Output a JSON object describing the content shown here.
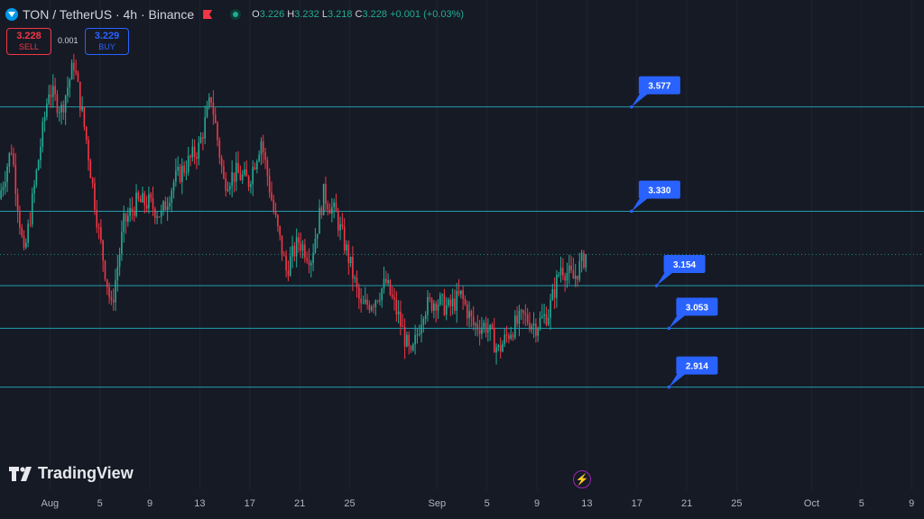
{
  "header": {
    "symbol": "TON / TetherUS · 4h · Binance",
    "ohlc": {
      "o": "3.226",
      "h": "3.232",
      "l": "3.218",
      "c": "3.228",
      "chg": "+0.001 (+0.03%)"
    },
    "labels": {
      "o": "O",
      "h": "H",
      "l": "L",
      "c": "C"
    }
  },
  "trade": {
    "sell_price": "3.228",
    "sell_label": "SELL",
    "buy_price": "3.229",
    "buy_label": "BUY",
    "spread": "0.001"
  },
  "brand": "TradingView",
  "icons": [
    "ton-coin-icon",
    "flag-icon",
    "market-status-icon",
    "tradingview-logo-icon",
    "lightning-icon"
  ],
  "colors": {
    "background": "#161a25",
    "up": "#22ab94",
    "down": "#f23645",
    "level_line": "#26c6da",
    "label_bg": "#2962ff"
  },
  "chart_data": {
    "type": "candlestick",
    "title": "TON / TetherUS · 4h · Binance",
    "x_tick_labels": [
      "Aug",
      "5",
      "9",
      "13",
      "17",
      "21",
      "25",
      "Sep",
      "5",
      "9",
      "13",
      "17",
      "21",
      "25",
      "Oct",
      "5",
      "9"
    ],
    "x_range": [
      "2024-07-28",
      "2024-10-10"
    ],
    "y_range": [
      2.67,
      3.83
    ],
    "last_price": 3.228,
    "levels": [
      {
        "label": "3.577",
        "value": 3.577
      },
      {
        "label": "3.330",
        "value": 3.33
      },
      {
        "label": "3.154",
        "value": 3.154
      },
      {
        "label": "3.053",
        "value": 3.053
      },
      {
        "label": "2.914",
        "value": 2.914
      }
    ],
    "path_anchors": [
      [
        "2024-07-28",
        3.36
      ],
      [
        "2024-07-29",
        3.48
      ],
      [
        "2024-07-30",
        3.22
      ],
      [
        "2024-07-31",
        3.42
      ],
      [
        "2024-08-01",
        3.62
      ],
      [
        "2024-08-02",
        3.57
      ],
      [
        "2024-08-03",
        3.68
      ],
      [
        "2024-08-04",
        3.5
      ],
      [
        "2024-08-05",
        3.28
      ],
      [
        "2024-08-06",
        3.1
      ],
      [
        "2024-08-07",
        3.3
      ],
      [
        "2024-08-08",
        3.35
      ],
      [
        "2024-08-09",
        3.35
      ],
      [
        "2024-08-10",
        3.32
      ],
      [
        "2024-08-11",
        3.4
      ],
      [
        "2024-08-12",
        3.44
      ],
      [
        "2024-08-13",
        3.48
      ],
      [
        "2024-08-14",
        3.6
      ],
      [
        "2024-08-15",
        3.4
      ],
      [
        "2024-08-16",
        3.42
      ],
      [
        "2024-08-17",
        3.4
      ],
      [
        "2024-08-18",
        3.5
      ],
      [
        "2024-08-19",
        3.33
      ],
      [
        "2024-08-20",
        3.19
      ],
      [
        "2024-08-21",
        3.26
      ],
      [
        "2024-08-22",
        3.22
      ],
      [
        "2024-08-23",
        3.37
      ],
      [
        "2024-08-24",
        3.32
      ],
      [
        "2024-08-25",
        3.22
      ],
      [
        "2024-08-26",
        3.1
      ],
      [
        "2024-08-27",
        3.12
      ],
      [
        "2024-08-28",
        3.16
      ],
      [
        "2024-08-29",
        3.08
      ],
      [
        "2024-08-30",
        2.98
      ],
      [
        "2024-08-31",
        3.1
      ],
      [
        "2024-09-01",
        3.12
      ],
      [
        "2024-09-02",
        3.1
      ],
      [
        "2024-09-03",
        3.13
      ],
      [
        "2024-09-04",
        3.06
      ],
      [
        "2024-09-05",
        3.06
      ],
      [
        "2024-09-06",
        3.0
      ],
      [
        "2024-09-07",
        3.05
      ],
      [
        "2024-09-08",
        3.08
      ],
      [
        "2024-09-09",
        3.06
      ],
      [
        "2024-09-10",
        3.09
      ],
      [
        "2024-09-11",
        3.2
      ],
      [
        "2024-09-12",
        3.17
      ],
      [
        "2024-09-13",
        3.228
      ]
    ]
  }
}
